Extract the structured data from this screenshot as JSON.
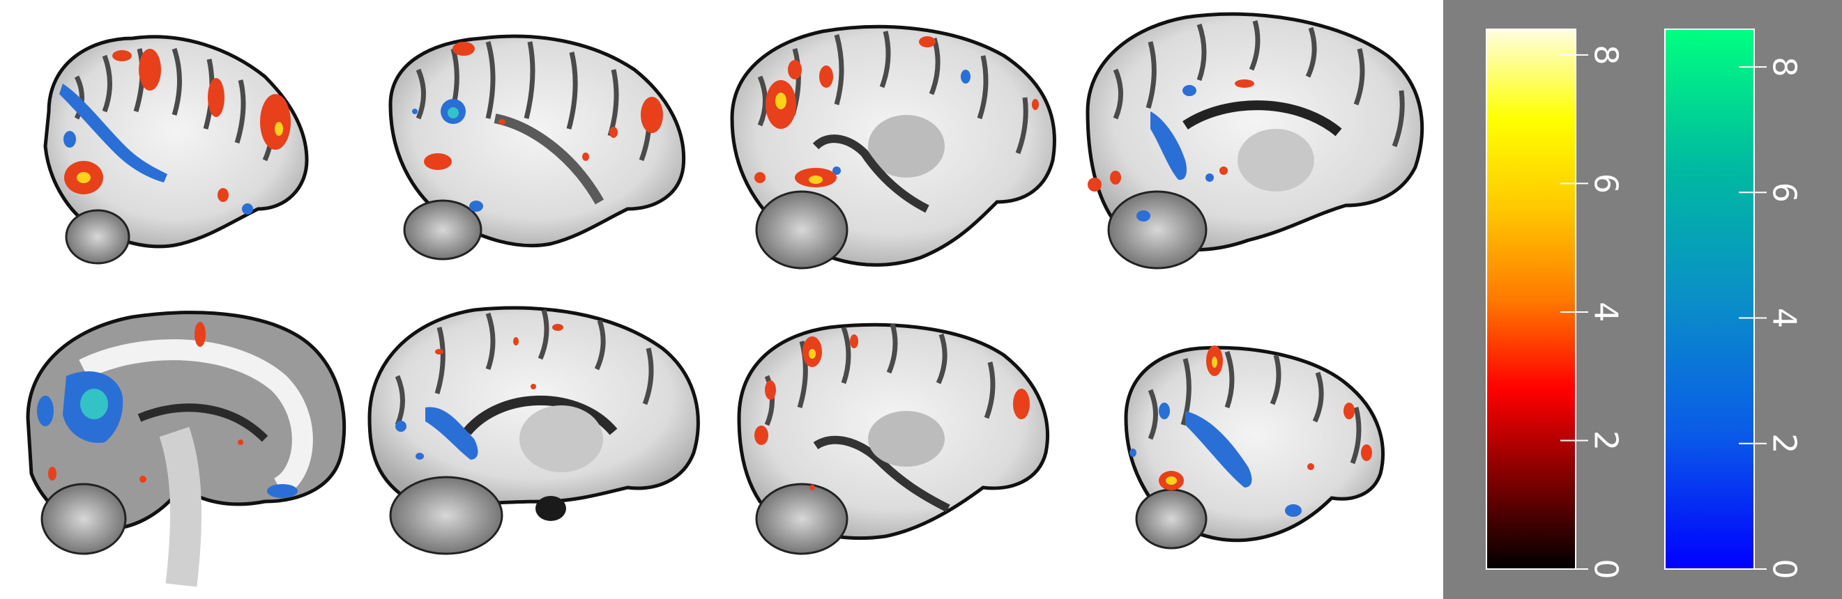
{
  "colors": {
    "background": "#ffffff",
    "colorbar_panel": "#7f7f7f",
    "positive_overlay": "#e8401a",
    "positive_hot": "#ffd21a",
    "negative_overlay": "#2a6fd6",
    "negative_light": "#33c3c6"
  },
  "view": "sagittal",
  "slices": [
    {
      "id": "slice-1",
      "hemisphere": "right-lateral"
    },
    {
      "id": "slice-2",
      "hemisphere": "right"
    },
    {
      "id": "slice-3",
      "hemisphere": "right-medial"
    },
    {
      "id": "slice-4",
      "hemisphere": "midline-right"
    },
    {
      "id": "slice-5",
      "hemisphere": "midline-left"
    },
    {
      "id": "slice-6",
      "hemisphere": "left-medial"
    },
    {
      "id": "slice-7",
      "hemisphere": "left"
    },
    {
      "id": "slice-8",
      "hemisphere": "left-lateral"
    }
  ],
  "colorbars": [
    {
      "name": "positive",
      "stops": [
        "#000000",
        "#7f0000",
        "#ff0000",
        "#ff7a00",
        "#ffc800",
        "#ffff00",
        "#fffde0"
      ],
      "range": [
        0,
        8.4
      ],
      "ticks": [
        0,
        2,
        4,
        6,
        8
      ],
      "tick_labels": [
        "0",
        "2",
        "4",
        "6",
        "8"
      ]
    },
    {
      "name": "negative",
      "stops": [
        "#0000ff",
        "#0a5be8",
        "#0a8fc8",
        "#00bba0",
        "#00ff80"
      ],
      "range": [
        0,
        8.6
      ],
      "ticks": [
        0,
        2,
        4,
        6,
        8
      ],
      "tick_labels": [
        "0",
        "2",
        "4",
        "6",
        "8"
      ]
    }
  ]
}
